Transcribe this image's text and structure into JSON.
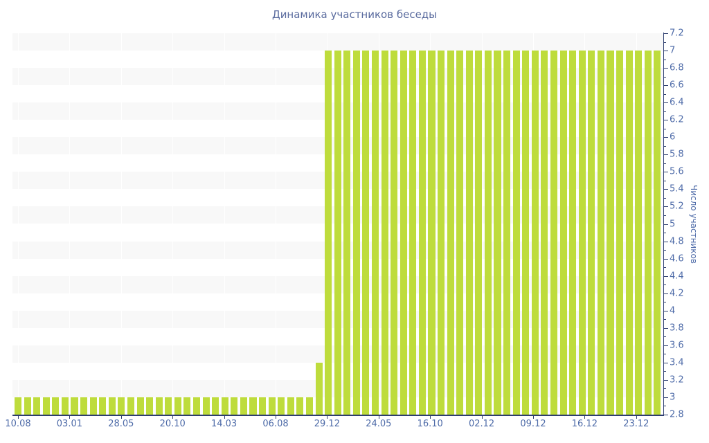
{
  "page": {
    "background": "#ffffff"
  },
  "chart_data": {
    "type": "bar",
    "title": "Динамика участников беседы",
    "ylabel": "Число участников",
    "xlabel": "",
    "ylim": [
      2.8,
      7.2
    ],
    "y_major_step": 0.2,
    "y_minor_step": 0.1,
    "y_tick_labels": [
      "2.8",
      "3",
      "3.2",
      "3.4",
      "3.6",
      "3.8",
      "4",
      "4.2",
      "4.4",
      "4.6",
      "4.8",
      "5",
      "5.2",
      "5.4",
      "5.6",
      "5.8",
      "6",
      "6.2",
      "6.4",
      "6.6",
      "6.8",
      "7",
      "7.2"
    ],
    "x_tick_labels": [
      "10.08",
      "03.01",
      "28.05",
      "20.10",
      "14.03",
      "06.08",
      "29.12",
      "24.05",
      "16.10",
      "02.12",
      "09.12",
      "16.12",
      "23.12"
    ],
    "values": [
      3,
      3,
      3,
      3,
      3,
      3,
      3,
      3,
      3,
      3,
      3,
      3,
      3,
      3,
      3,
      3,
      3,
      3,
      3,
      3,
      3,
      3,
      3,
      3,
      3,
      3,
      3,
      3,
      3,
      3,
      3,
      3,
      3.4,
      7,
      7,
      7,
      7,
      7,
      7,
      7,
      7,
      7,
      7,
      7,
      7,
      7,
      7,
      7,
      7,
      7,
      7,
      7,
      7,
      7,
      7,
      7,
      7,
      7,
      7,
      7,
      7,
      7,
      7,
      7,
      7,
      7,
      7,
      7,
      7
    ],
    "legend": "none",
    "grid": "alternating-horizontal-bands",
    "colors": {
      "bar": "#bedc3c",
      "axis": "#2e3e6f",
      "tick_label": "#4e6ba8",
      "title": "#5a6b9e",
      "stripe": "#f8f8f8",
      "background": "#ffffff"
    }
  }
}
